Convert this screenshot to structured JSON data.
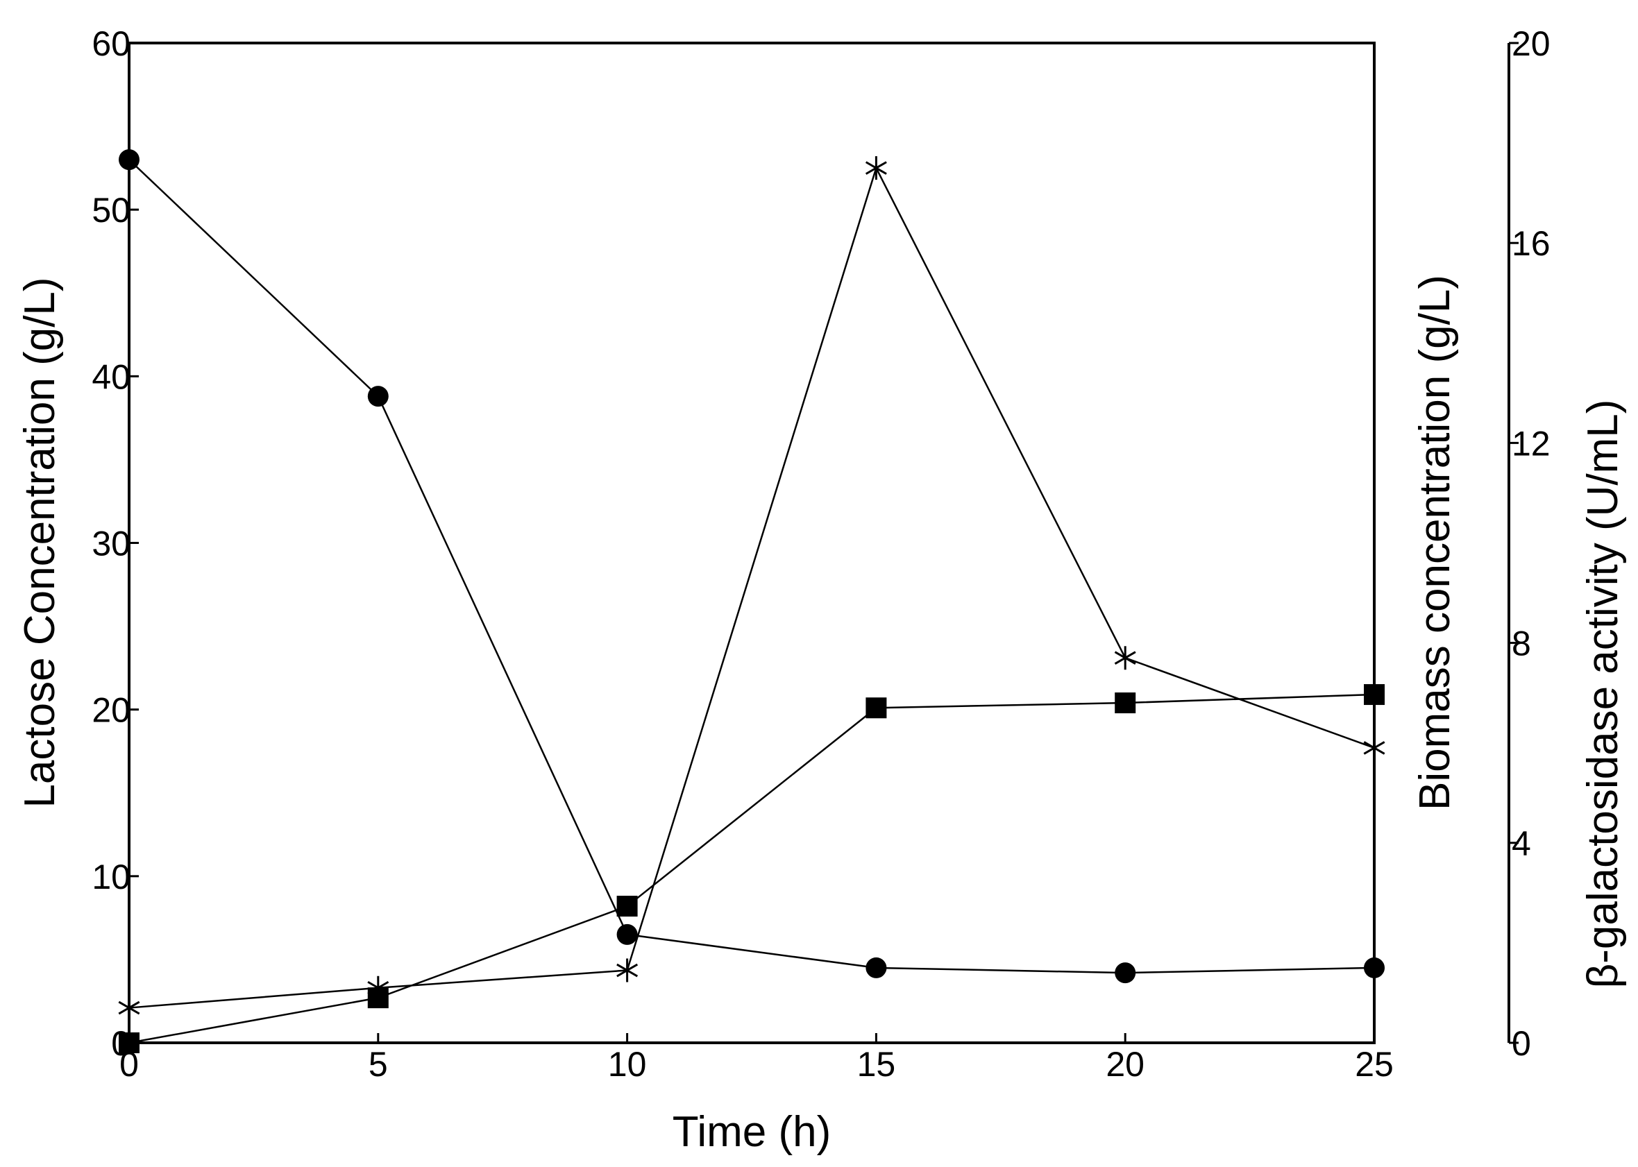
{
  "chart_data": {
    "type": "line",
    "x": [
      0,
      5,
      10,
      15,
      20,
      25
    ],
    "xlabel": "Time (h)",
    "xlim": [
      0,
      25
    ],
    "xticks": [
      "0",
      "5",
      "10",
      "15",
      "20",
      "25"
    ],
    "axes": {
      "left": {
        "label": "Lactose Concentration (g/L)",
        "ylim": [
          0,
          60
        ],
        "ticks": [
          "0",
          "10",
          "20",
          "30",
          "40",
          "50",
          "60"
        ]
      },
      "right_inner": {
        "label": "Biomass concentration (g/L)",
        "ylim": [
          0,
          60
        ],
        "ticks": []
      },
      "right_outer": {
        "label": "β-galactosidase activity (U/mL)",
        "ylim": [
          0,
          20
        ],
        "ticks": [
          "0",
          "4",
          "8",
          "12",
          "16",
          "20"
        ]
      }
    },
    "series": [
      {
        "marker": "circle",
        "axis": "left",
        "values": [
          53,
          38.8,
          6.5,
          4.5,
          4.2,
          4.5
        ]
      },
      {
        "marker": "square",
        "axis": "right_inner",
        "values": [
          0,
          2.7,
          8.2,
          20.1,
          20.4,
          20.9
        ]
      },
      {
        "marker": "asterisk",
        "axis": "right_outer",
        "values": [
          0.7,
          1.1,
          1.45,
          17.5,
          7.7,
          5.9
        ]
      }
    ],
    "grid": false,
    "legend": "none"
  }
}
